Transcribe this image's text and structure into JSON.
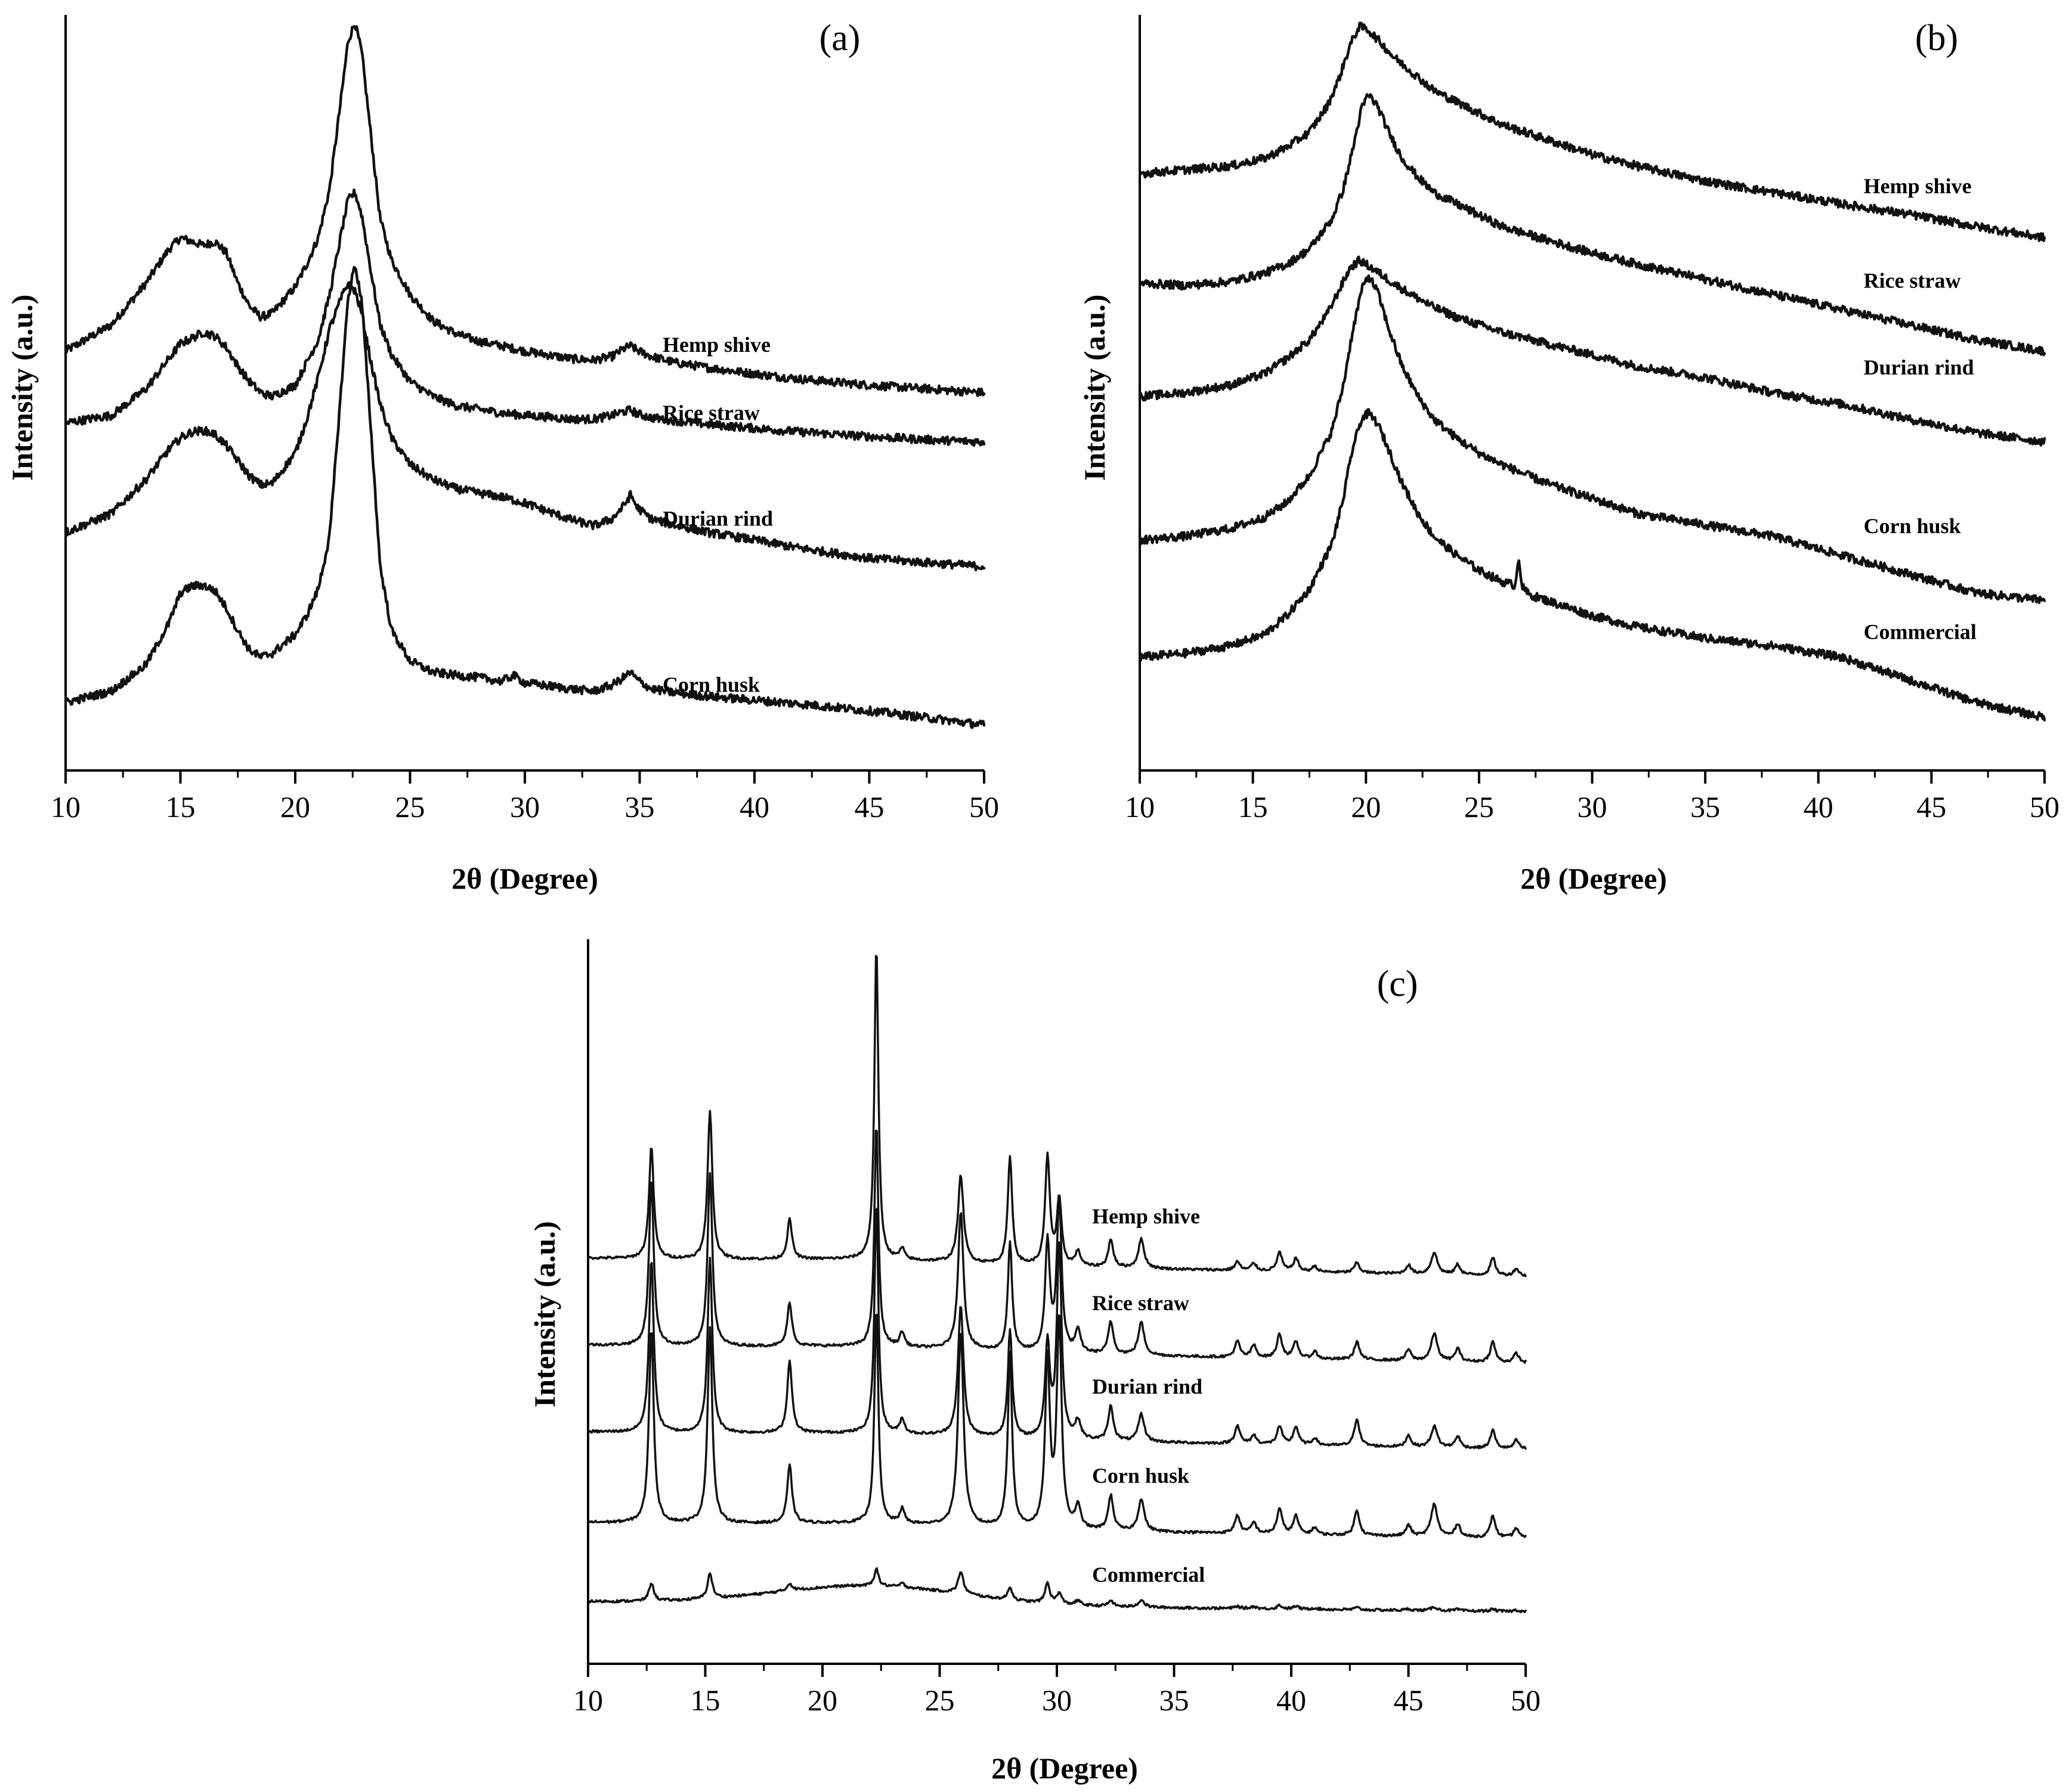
{
  "colors": {
    "line": "#111111",
    "axis": "#000000",
    "background": "#ffffff"
  },
  "chart_data": [
    {
      "id": "a",
      "type": "line",
      "panel_label": "(a)",
      "xlabel": "2θ (Degree)",
      "ylabel": "Intensity (a.u.)",
      "xlim": [
        10,
        50
      ],
      "ylim": [
        0,
        100
      ],
      "xticks": [
        10,
        15,
        20,
        25,
        30,
        35,
        40,
        45,
        50
      ],
      "xtick_labels": [
        "10",
        "15",
        "20",
        "25",
        "30",
        "35",
        "40",
        "45",
        "50"
      ],
      "series": [
        {
          "name": "Hemp shive",
          "label_x": 36.0,
          "label_y": 55.4,
          "x": [
            10,
            12,
            13.5,
            14.5,
            15,
            15.5,
            16,
            16.5,
            17,
            17.5,
            18,
            18.5,
            19,
            20,
            20.5,
            21,
            21.5,
            22,
            22.3,
            22.6,
            22.9,
            23.3,
            23.7,
            24.2,
            25,
            26,
            27,
            28,
            29,
            30,
            31,
            32,
            33,
            33.8,
            34.3,
            34.6,
            34.9,
            35.5,
            36.5,
            38,
            40,
            42,
            45,
            48,
            50
          ],
          "y": [
            55.5,
            59,
            64.5,
            69,
            70.5,
            70,
            69.5,
            70,
            68.5,
            64.5,
            61.5,
            60,
            60.5,
            64,
            67,
            70.5,
            77,
            89,
            96.5,
            99,
            95,
            84,
            73,
            67.5,
            63,
            59.5,
            57.8,
            56.8,
            56.2,
            55.5,
            55,
            54.5,
            54.3,
            54.8,
            55.8,
            56.2,
            55.6,
            54.8,
            54,
            53.3,
            52.5,
            51.8,
            51,
            50.4,
            50
          ]
        },
        {
          "name": "Rice straw",
          "label_x": 36.0,
          "label_y": 46.4,
          "x": [
            10,
            12,
            13.5,
            14.5,
            15,
            15.5,
            16,
            16.5,
            17,
            17.5,
            18,
            18.5,
            19,
            20,
            20.5,
            21,
            21.5,
            22,
            22.3,
            22.6,
            22.9,
            23.3,
            23.7,
            24.2,
            25,
            26,
            27,
            28,
            29,
            30,
            31,
            32,
            33,
            33.8,
            34.3,
            34.6,
            34.9,
            35.5,
            36.5,
            38,
            40,
            42,
            45,
            48,
            50
          ],
          "y": [
            46,
            47,
            50.5,
            54.5,
            56.5,
            57.2,
            58,
            57.5,
            56,
            53.5,
            51.5,
            50,
            49.5,
            51,
            54,
            57,
            63,
            71,
            75.5,
            76.5,
            73.5,
            66,
            59,
            55,
            51.5,
            49.5,
            48.3,
            47.8,
            47.3,
            47,
            46.8,
            46.5,
            46.5,
            47,
            47.5,
            47.7,
            47.2,
            46.7,
            46.3,
            45.8,
            45.3,
            44.8,
            44.2,
            43.7,
            43.5
          ]
        },
        {
          "name": "Durian rind",
          "label_x": 36.0,
          "label_y": 32.4,
          "x": [
            10,
            12,
            13.5,
            14.5,
            15,
            15.5,
            16,
            16.5,
            17,
            17.5,
            18,
            18.5,
            19,
            20,
            20.5,
            21,
            21.5,
            22,
            22.3,
            22.6,
            22.9,
            23.3,
            23.7,
            24.2,
            25,
            26,
            27,
            28,
            29,
            30,
            31,
            32,
            33,
            33.8,
            34.3,
            34.6,
            34.9,
            35.5,
            36.5,
            38,
            40,
            42,
            45,
            48,
            50
          ],
          "y": [
            31.5,
            34,
            38.5,
            42.5,
            44,
            44.8,
            45,
            44.5,
            43,
            41,
            39,
            37.8,
            38,
            42,
            46.5,
            52,
            58.5,
            62.5,
            64.5,
            63.5,
            60.5,
            54,
            48.5,
            44,
            40.5,
            38.5,
            37.3,
            36.7,
            36.2,
            35.4,
            34.3,
            33.2,
            32.4,
            33.3,
            35,
            36.5,
            34.8,
            33.3,
            32.5,
            31.5,
            30.5,
            29.4,
            28.1,
            27.4,
            27
          ]
        },
        {
          "name": "Corn husk",
          "label_x": 36.0,
          "label_y": 10.4,
          "x": [
            10,
            12,
            13.5,
            14.5,
            15,
            15.5,
            16,
            16.5,
            17,
            17.5,
            18,
            18.5,
            19,
            20,
            20.5,
            21,
            21.5,
            22,
            22.3,
            22.6,
            22.9,
            23.3,
            23.7,
            24.2,
            25,
            26,
            27,
            28,
            29,
            29.5,
            30,
            31,
            32,
            33,
            33.8,
            34.3,
            34.6,
            34.9,
            35.5,
            36.5,
            38,
            40,
            42,
            45,
            48,
            50
          ],
          "y": [
            9,
            10.5,
            14,
            19.5,
            23.5,
            24.4,
            24.5,
            23.8,
            21.5,
            18.5,
            16,
            15,
            15.5,
            18,
            20.5,
            24,
            31,
            50.5,
            62.5,
            67,
            62,
            45,
            27,
            18.5,
            14.5,
            13,
            12.6,
            12.3,
            11.8,
            12.6,
            11.6,
            11.2,
            10.8,
            10.5,
            11.3,
            12.3,
            13,
            12,
            10.8,
            10.3,
            9.8,
            9.3,
            8.8,
            7.9,
            6.8,
            6
          ]
        }
      ]
    },
    {
      "id": "b",
      "type": "line",
      "panel_label": "(b)",
      "xlabel": "2θ (Degree)",
      "ylabel": "Intensity (a.u.)",
      "xlim": [
        10,
        50
      ],
      "ylim": [
        0,
        100
      ],
      "xticks": [
        10,
        15,
        20,
        25,
        30,
        35,
        40,
        45,
        50
      ],
      "xtick_labels": [
        "10",
        "15",
        "20",
        "25",
        "30",
        "35",
        "40",
        "45",
        "50"
      ],
      "series": [
        {
          "name": "Hemp shive",
          "label_x": 42.0,
          "label_y": 76.4,
          "x": [
            10,
            12,
            14,
            15.5,
            16.5,
            17.5,
            18.3,
            18.8,
            19.3,
            19.7,
            20.1,
            20.6,
            21.2,
            22,
            23,
            24,
            25,
            26,
            28,
            30,
            32,
            35,
            38,
            41,
            44,
            47,
            50
          ],
          "y": [
            79,
            79.5,
            80,
            81,
            82.5,
            84.5,
            88,
            91.5,
            96,
            98.5,
            98,
            96.5,
            94.5,
            92.5,
            90,
            88.5,
            87,
            85.5,
            83.5,
            81.5,
            80,
            78,
            76.5,
            75,
            73.6,
            72,
            70.5
          ]
        },
        {
          "name": "Rice straw",
          "label_x": 42.0,
          "label_y": 63.9,
          "x": [
            10,
            12,
            14,
            15.5,
            16.5,
            17.5,
            18.5,
            19,
            19.4,
            19.8,
            20.1,
            20.5,
            21,
            21.6,
            22.3,
            23,
            24,
            25,
            26,
            28,
            30,
            32,
            35,
            38,
            41,
            44,
            47,
            50
          ],
          "y": [
            64.5,
            64.2,
            64.7,
            65.8,
            67,
            69,
            73,
            77,
            82,
            87.5,
            89.5,
            88,
            84.5,
            81,
            78.5,
            76.5,
            75,
            73.5,
            72,
            70.2,
            68.5,
            67,
            65,
            63,
            61,
            59,
            57,
            55.5
          ]
        },
        {
          "name": "Durian rind",
          "label_x": 42.0,
          "label_y": 52.4,
          "x": [
            10,
            12,
            14,
            15.5,
            16.5,
            17.5,
            18.3,
            18.8,
            19.3,
            19.7,
            20.1,
            20.6,
            21.2,
            22,
            23,
            24,
            25,
            26,
            28,
            30,
            32,
            35,
            38,
            41,
            44,
            47,
            50
          ],
          "y": [
            49.5,
            50,
            51,
            52.5,
            54.5,
            57,
            60.5,
            63.5,
            66.5,
            67.5,
            66.8,
            65.8,
            64.5,
            63,
            61.3,
            60,
            59,
            58,
            56.5,
            55,
            53.5,
            52,
            50,
            48.5,
            46.5,
            44.7,
            43.5
          ]
        },
        {
          "name": "Corn husk",
          "label_x": 42.0,
          "label_y": 31.4,
          "x": [
            10,
            12,
            14,
            15.5,
            16.5,
            17.5,
            18.5,
            19,
            19.4,
            19.8,
            20.1,
            20.5,
            21,
            21.6,
            22.3,
            23,
            24,
            25,
            26,
            28,
            30,
            32,
            35,
            38,
            41,
            44,
            47,
            50
          ],
          "y": [
            30.5,
            31,
            32,
            33.5,
            35.5,
            39,
            45,
            51,
            58,
            63.5,
            65.5,
            63.5,
            58.5,
            53.5,
            49.5,
            46.5,
            44,
            42,
            40.5,
            38,
            36,
            34,
            32.5,
            31,
            28.5,
            26,
            23.5,
            22.5
          ]
        },
        {
          "name": "Commercial",
          "label_x": 42.0,
          "label_y": 17.4,
          "x": [
            10,
            12,
            14,
            15.5,
            16.5,
            17.5,
            18.5,
            19,
            19.4,
            19.8,
            20.1,
            20.5,
            21,
            21.6,
            22.3,
            23,
            24,
            25,
            26,
            26.6,
            26.75,
            26.9,
            27.2,
            28,
            30,
            32,
            35,
            38,
            41,
            44,
            47,
            50
          ],
          "y": [
            15,
            15.5,
            16.5,
            18,
            20.5,
            24,
            30,
            36,
            42.5,
            46.5,
            47.3,
            46,
            42.5,
            38,
            34,
            31,
            28.5,
            26.5,
            25,
            24.5,
            28.5,
            24.3,
            23.3,
            22.5,
            20.5,
            19,
            17.5,
            16.5,
            15,
            12,
            9,
            7
          ]
        }
      ]
    },
    {
      "id": "c",
      "type": "line",
      "panel_label": "(c)",
      "xlabel": "2θ (Degree)",
      "ylabel": "Intensity (a.u.)",
      "xlim": [
        10,
        50
      ],
      "ylim": [
        0,
        100
      ],
      "xticks": [
        10,
        15,
        20,
        25,
        30,
        35,
        40,
        45,
        50
      ],
      "xtick_labels": [
        "10",
        "15",
        "20",
        "25",
        "30",
        "35",
        "40",
        "45",
        "50"
      ],
      "peak_positions": [
        12.7,
        15.2,
        18.6,
        22.3,
        23.4,
        25.9,
        28.0,
        29.6,
        30.1,
        30.9,
        32.3,
        33.6,
        37.7,
        38.4,
        39.5,
        40.2,
        41.0,
        42.8,
        45.0,
        46.1,
        47.1,
        48.6,
        49.6
      ],
      "peak_widths": [
        0.12,
        0.12,
        0.12,
        0.1,
        0.12,
        0.14,
        0.11,
        0.12,
        0.12,
        0.14,
        0.13,
        0.15,
        0.13,
        0.13,
        0.13,
        0.13,
        0.12,
        0.13,
        0.13,
        0.16,
        0.13,
        0.13,
        0.13
      ],
      "series": [
        {
          "name": "Hemp shive",
          "label_x": 31.5,
          "label_y": 60.8,
          "baseline_start": 56.0,
          "baseline_end": 53.5,
          "hump": 0.5,
          "peak_heights": [
            15.5,
            20.5,
            5.5,
            43.5,
            1.5,
            12,
            15,
            15,
            9,
            2,
            3.8,
            4,
            1.2,
            1,
            2.6,
            1.8,
            0.8,
            1.4,
            1.2,
            3,
            1.4,
            2.4,
            1
          ]
        },
        {
          "name": "Rice straw",
          "label_x": 31.5,
          "label_y": 48.8,
          "baseline_start": 44.0,
          "baseline_end": 41.5,
          "hump": 0.5,
          "peak_heights": [
            23,
            24,
            6,
            31,
            2,
            19,
            15,
            15,
            21,
            3,
            4.5,
            4.5,
            2.2,
            1.7,
            3.3,
            2.3,
            1,
            2.5,
            1.5,
            3.8,
            1.8,
            2.8,
            1.3
          ]
        },
        {
          "name": "Durian rind",
          "label_x": 31.5,
          "label_y": 37.3,
          "baseline_start": 32.0,
          "baseline_end": 29.6,
          "hump": 0.5,
          "peak_heights": [
            24,
            24,
            10,
            32,
            2,
            18,
            15,
            13,
            27,
            2.5,
            4.8,
            3.8,
            2.5,
            1.2,
            2.5,
            2.5,
            1,
            3.8,
            1.6,
            2.9,
            1.6,
            2.5,
            1.2
          ]
        },
        {
          "name": "Corn husk",
          "label_x": 31.5,
          "label_y": 25.0,
          "baseline_start": 19.5,
          "baseline_end": 17.3,
          "hump": 0.5,
          "peak_heights": [
            27,
            27,
            8,
            30,
            2,
            27,
            24,
            23,
            29,
            3,
            4.8,
            4.5,
            2.5,
            1.5,
            3.5,
            2.5,
            1,
            3.5,
            1.5,
            4.5,
            1.8,
            3,
            1.4
          ]
        },
        {
          "name": "Commercial",
          "label_x": 31.5,
          "label_y": 11.3,
          "baseline_start": 8.6,
          "baseline_end": 7.2,
          "hump": 2.6,
          "peak_heights": [
            2.5,
            3.5,
            1,
            2.5,
            0.5,
            3,
            1.8,
            2.8,
            1.5,
            0.6,
            0.8,
            1,
            0.3,
            0.3,
            0.5,
            0.4,
            0.2,
            0.3,
            0.2,
            0.5,
            0.2,
            0.3,
            0.2
          ]
        }
      ]
    }
  ]
}
